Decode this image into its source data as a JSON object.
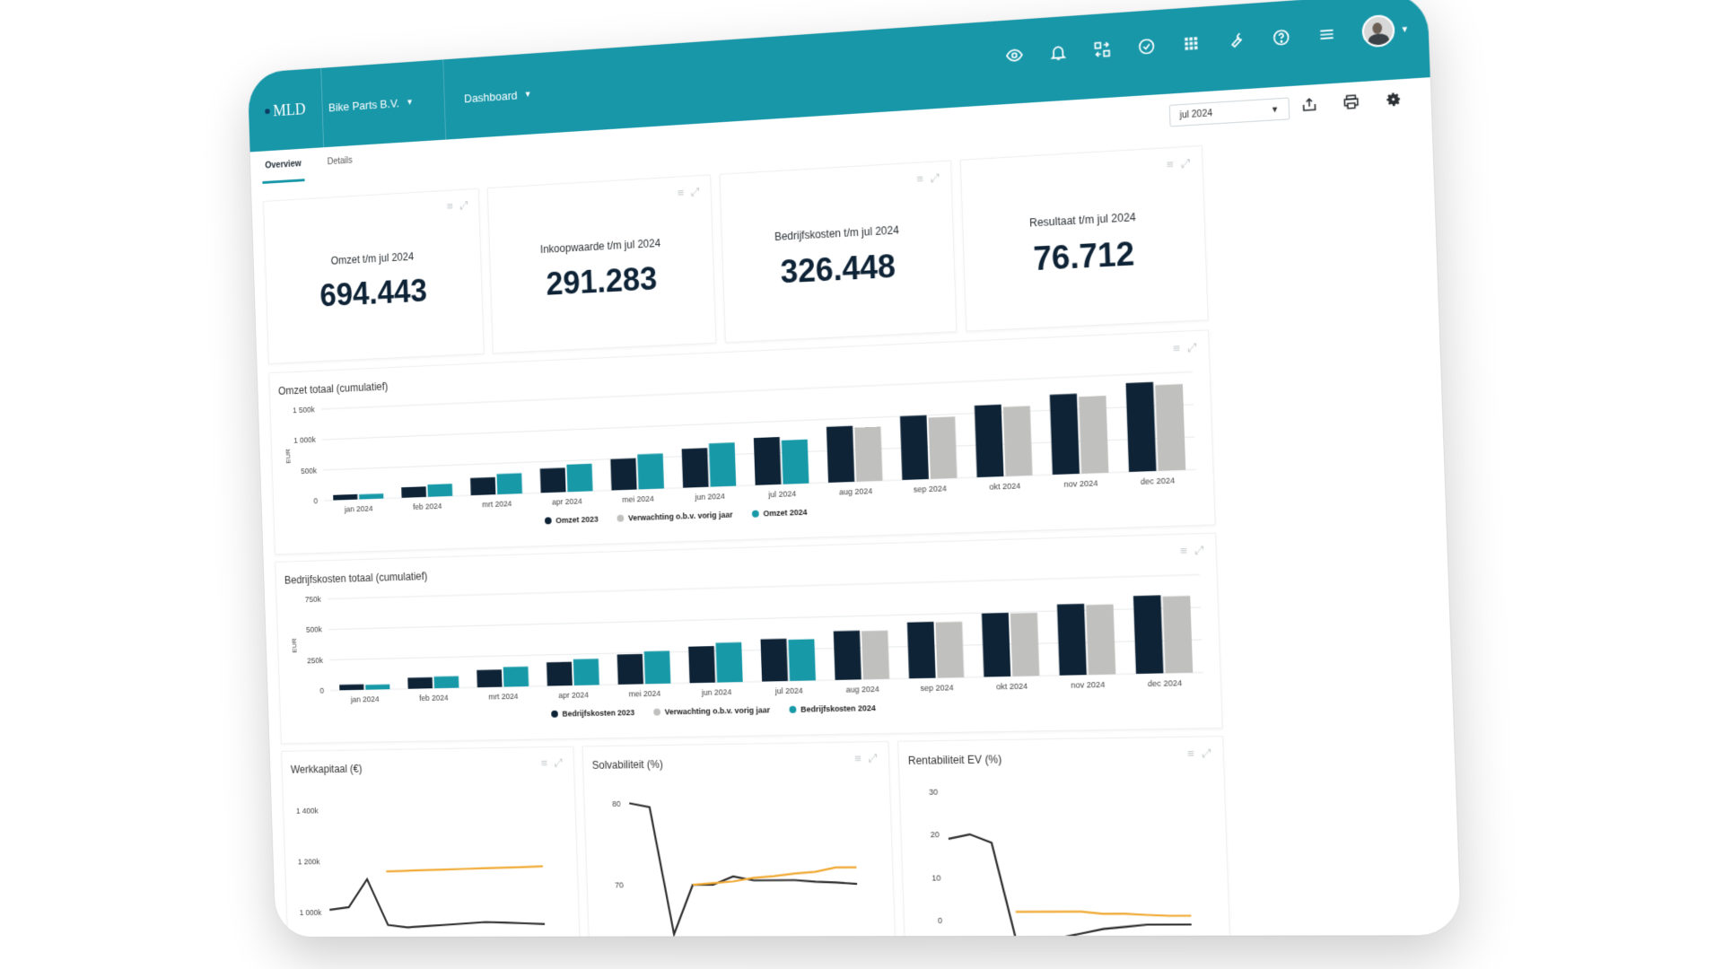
{
  "header": {
    "logo": "MLD",
    "company": "Bike Parts B.V.",
    "view": "Dashboard",
    "icons": [
      "eye-icon",
      "bell-icon",
      "switch-icon",
      "check-circle-icon",
      "apps-grid-icon",
      "wrench-icon",
      "help-icon",
      "menu-icon"
    ]
  },
  "tabs": [
    {
      "label": "Overview",
      "active": true
    },
    {
      "label": "Details",
      "active": false
    }
  ],
  "period": {
    "value": "jul 2024"
  },
  "toolbar_icons": [
    "share-icon",
    "print-icon",
    "gear-icon"
  ],
  "kpis": [
    {
      "label": "Omzet t/m jul 2024",
      "value": "694.443"
    },
    {
      "label": "Inkoopwaarde t/m jul 2024",
      "value": "291.283"
    },
    {
      "label": "Bedrijfskosten t/m jul 2024",
      "value": "326.448"
    },
    {
      "label": "Resultaat t/m jul 2024",
      "value": "76.712"
    }
  ],
  "colors": {
    "brand": "#1897a9",
    "series_prev": "#0e2336",
    "series_expect": "#c0c0be",
    "series_current": "#1899a8",
    "line_dark": "#2b2b2b",
    "line_orange": "#f0a830"
  },
  "chart_data": [
    {
      "type": "bar",
      "title": "Omzet totaal (cumulatief)",
      "ylabel": "EUR",
      "yticks": [
        "0",
        "500k",
        "1 000k",
        "1 500k"
      ],
      "ylim": [
        0,
        1500000
      ],
      "categories": [
        "jan 2024",
        "feb 2024",
        "mrt 2024",
        "apr 2024",
        "mei 2024",
        "jun 2024",
        "jul 2024",
        "aug 2024",
        "sep 2024",
        "okt 2024",
        "nov 2024",
        "dec 2024"
      ],
      "series": [
        {
          "name": "Omzet 2023",
          "values": [
            85000,
            170000,
            280000,
            390000,
            500000,
            620000,
            750000,
            880000,
            1000000,
            1120000,
            1240000,
            1370000
          ]
        },
        {
          "name": "Verwachting o.b.v. vorig jaar",
          "values": [
            null,
            null,
            null,
            null,
            null,
            null,
            null,
            850000,
            960000,
            1080000,
            1190000,
            1320000
          ]
        },
        {
          "name": "Omzet 2024",
          "values": [
            80000,
            200000,
            330000,
            440000,
            560000,
            690000,
            694443,
            null,
            null,
            null,
            null,
            null
          ]
        }
      ],
      "legend": "bottom"
    },
    {
      "type": "bar",
      "title": "Bedrijfskosten totaal (cumulatief)",
      "ylabel": "EUR",
      "yticks": [
        "0",
        "250k",
        "500k",
        "750k"
      ],
      "ylim": [
        0,
        750000
      ],
      "categories": [
        "jan 2024",
        "feb 2024",
        "mrt 2024",
        "apr 2024",
        "mei 2024",
        "jun 2024",
        "jul 2024",
        "aug 2024",
        "sep 2024",
        "okt 2024",
        "nov 2024",
        "dec 2024"
      ],
      "series": [
        {
          "name": "Bedrijfskosten 2023",
          "values": [
            45000,
            90000,
            140000,
            190000,
            240000,
            290000,
            335000,
            385000,
            440000,
            495000,
            550000,
            600000
          ]
        },
        {
          "name": "Verwachting o.b.v. vorig jaar",
          "values": [
            null,
            null,
            null,
            null,
            null,
            null,
            null,
            380000,
            435000,
            490000,
            540000,
            590000
          ]
        },
        {
          "name": "Bedrijfskosten 2024",
          "values": [
            40000,
            95000,
            160000,
            210000,
            260000,
            315000,
            326448,
            null,
            null,
            null,
            null,
            null
          ]
        }
      ],
      "legend": "bottom"
    },
    {
      "type": "line",
      "title": "Werkkapitaal (€)",
      "yticks": [
        "1 000k",
        "1 200k",
        "1 400k"
      ],
      "ylim": [
        880000,
        1480000
      ],
      "x": [
        1,
        2,
        3,
        4,
        5,
        6,
        7,
        8,
        9,
        10,
        11,
        12
      ],
      "series": [
        {
          "values": [
            1010000,
            1020000,
            1130000,
            950000,
            940000,
            945000,
            950000,
            955000,
            960000,
            958000,
            955000,
            952000
          ]
        },
        {
          "values": [
            null,
            null,
            null,
            1160000,
            1162000,
            1164000,
            1166000,
            1168000,
            1170000,
            1172000,
            1174000,
            1176000
          ]
        }
      ]
    },
    {
      "type": "line",
      "title": "Solvabiliteit (%)",
      "yticks": [
        "70",
        "80"
      ],
      "ylim": [
        63,
        82
      ],
      "x": [
        1,
        2,
        3,
        4,
        5,
        6,
        7,
        8,
        9,
        10,
        11,
        12
      ],
      "series": [
        {
          "values": [
            80,
            79.5,
            64,
            70,
            70,
            71,
            70.5,
            70.5,
            70.5,
            70.3,
            70.2,
            70
          ]
        },
        {
          "values": [
            null,
            null,
            null,
            70,
            70.2,
            70.4,
            70.8,
            71,
            71.3,
            71.5,
            72,
            72
          ]
        }
      ]
    },
    {
      "type": "line",
      "title": "Rentabiliteit EV (%)",
      "yticks": [
        "0",
        "10",
        "20",
        "30"
      ],
      "ylim": [
        -5,
        32
      ],
      "x": [
        1,
        2,
        3,
        4,
        5,
        6,
        7,
        8,
        9,
        10,
        11,
        12
      ],
      "series": [
        {
          "values": [
            19,
            20,
            18,
            -5,
            -5,
            -4,
            -3,
            -2,
            -1.5,
            -1,
            -1,
            -1
          ]
        },
        {
          "values": [
            null,
            null,
            null,
            2,
            2,
            2,
            2,
            1.5,
            1.5,
            1.2,
            1,
            1
          ]
        }
      ]
    }
  ]
}
